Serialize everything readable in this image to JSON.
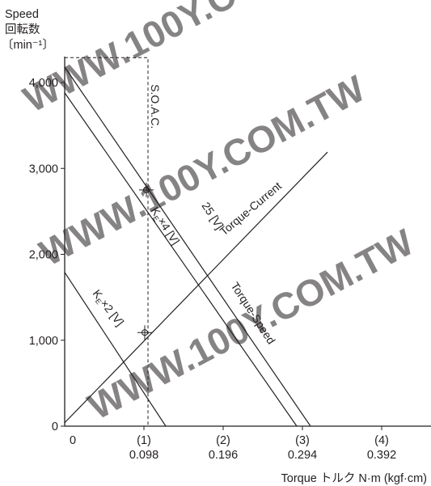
{
  "watermark": "WWW.100Y.COM.TW",
  "chart_data": {
    "type": "line",
    "ylabel": [
      "Speed",
      "回転数",
      "〔min⁻¹〕"
    ],
    "xlabel": "Torque トルク N·m (kgf·cm)",
    "xlim": [
      0,
      0.45
    ],
    "ylim": [
      0,
      4200
    ],
    "y_ticks": [
      {
        "value": 0,
        "label": "0"
      },
      {
        "value": 1000,
        "label": "1,000"
      },
      {
        "value": 2000,
        "label": "2,000"
      },
      {
        "value": 3000,
        "label": "3,000"
      },
      {
        "value": 4000,
        "label": "4,000"
      }
    ],
    "x_ticks": [
      {
        "value": 0,
        "kgf": "",
        "nm": "0"
      },
      {
        "value": 0.098,
        "kgf": "(1)",
        "nm": "0.098"
      },
      {
        "value": 0.196,
        "kgf": "(2)",
        "nm": "0.196"
      },
      {
        "value": 0.294,
        "kgf": "(3)",
        "nm": "0.294"
      },
      {
        "value": 0.392,
        "kgf": "(4)",
        "nm": "0.392"
      }
    ],
    "series": [
      {
        "name": "Torque-Speed",
        "x": [
          0,
          0.304
        ],
        "y": [
          4180,
          0
        ]
      },
      {
        "name": "KE×4 [V]",
        "x": [
          0,
          0.287
        ],
        "y": [
          3880,
          0
        ]
      },
      {
        "name": "KE×2 [V]",
        "x": [
          0,
          0.125
        ],
        "y": [
          1790,
          0
        ]
      },
      {
        "name": "Torque-Current",
        "x": [
          0,
          0.325
        ],
        "y": [
          40,
          3190
        ]
      }
    ],
    "soac": {
      "x": 0.103,
      "y": 4290,
      "label": "S.O.A.C."
    },
    "markers": [
      {
        "x": 0.101,
        "y": 2750
      },
      {
        "x": 0.099,
        "y": 1090
      }
    ],
    "annotations": {
      "voltage": "25 [V]",
      "ke4_prefix": "K",
      "ke4_sub": "E",
      "ke4_rest": "×4 [V]",
      "ke2_prefix": "K",
      "ke2_sub": "E",
      "ke2_rest": "×2 [V]",
      "torque_speed": "Torque-Speed",
      "torque_current": "Torque-Current"
    }
  }
}
